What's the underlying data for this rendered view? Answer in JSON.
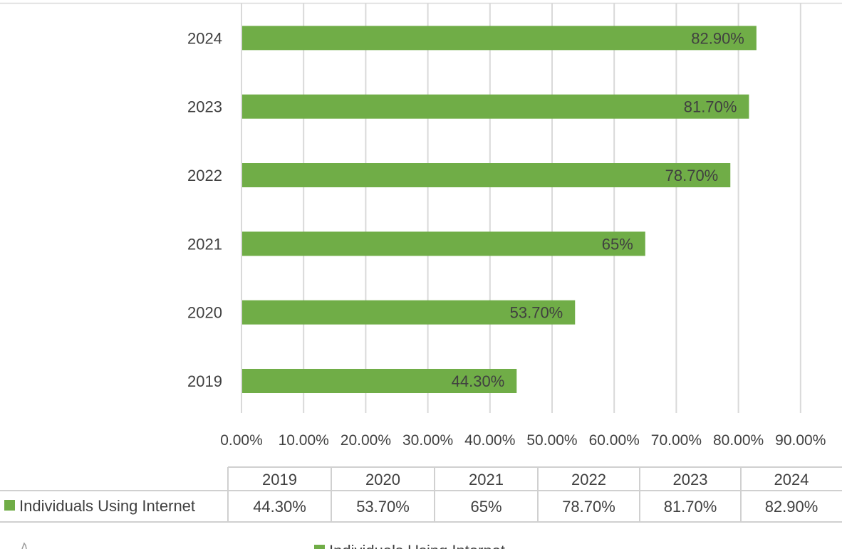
{
  "chart_data": {
    "type": "bar",
    "orientation": "horizontal",
    "categories": [
      "2019",
      "2020",
      "2021",
      "2022",
      "2023",
      "2024"
    ],
    "series": [
      {
        "name": "Individuals Using Internet",
        "values": [
          44.3,
          53.7,
          65,
          78.7,
          81.7,
          82.9
        ],
        "labels": [
          "44.30%",
          "53.70%",
          "65%",
          "78.70%",
          "81.70%",
          "82.90%"
        ],
        "color": "#70ad47"
      }
    ],
    "xlim": [
      0,
      90
    ],
    "xticks": [
      "0.00%",
      "10.00%",
      "20.00%",
      "30.00%",
      "40.00%",
      "50.00%",
      "60.00%",
      "70.00%",
      "80.00%",
      "90.00%"
    ],
    "grid": true,
    "data_table": true,
    "legend_bottom_partial": "Individuals Using Internet"
  }
}
